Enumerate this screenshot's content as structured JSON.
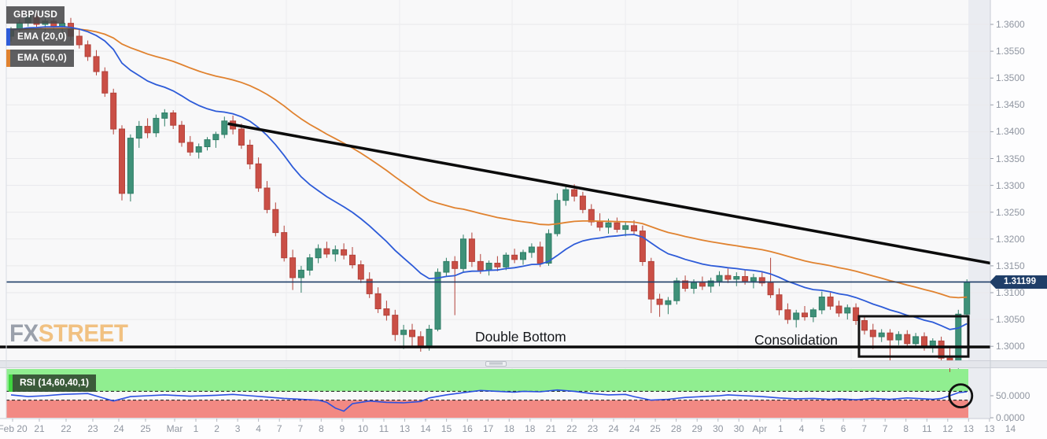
{
  "chart": {
    "pair_label": "GBP/USD",
    "legend": {
      "ema20_label": "EMA (20,0)",
      "ema50_label": "EMA (50,0)"
    },
    "watermark": {
      "part1": "FX",
      "part2": "STREET"
    },
    "annotations": {
      "double_bottom": "Double Bottom",
      "consolidation": "Consolidation"
    },
    "price_badge": "1.31199",
    "rsi_label": "RSI (14,60,40,1)"
  },
  "colors": {
    "bull": "#3f9179",
    "bull_border": "#2f7d66",
    "bear": "#ca4f46",
    "bear_border": "#b2423a",
    "ema20": "#2d5bd8",
    "ema50": "#e0822f",
    "rsi_line": "#2b50e0",
    "rsi_upper_band": "#90ee90",
    "rsi_lower_band": "#f28983",
    "price_line": "#1f3e68",
    "badge_bg": "#1f3e68",
    "annotation": "#16181c",
    "axis_text": "#9096a1",
    "watermark_fx": "#9aa0ab",
    "watermark_street": "#f1c181",
    "support_trend": "#0b0b0b",
    "legend_stripe_rsi": "#3fd53f"
  },
  "chart_data": {
    "type": "candlestick",
    "pair": "GBP/USD",
    "title": "GBP/USD with EMA(20) and EMA(50), RSI(14,60,40,1) sub-panel",
    "time_span": "Feb 20 - Apr 14",
    "price_axis": {
      "ticks": [
        "1.3600",
        "1.3550",
        "1.3500",
        "1.3450",
        "1.3400",
        "1.3350",
        "1.3300",
        "1.3250",
        "1.3200",
        "1.3150",
        "1.3100",
        "1.3050",
        "1.3000"
      ],
      "tick_values": [
        1.36,
        1.355,
        1.35,
        1.345,
        1.34,
        1.335,
        1.33,
        1.325,
        1.32,
        1.315,
        1.31,
        1.305,
        1.3
      ]
    },
    "time_axis": [
      "Feb 20",
      "21",
      "22",
      "23",
      "24",
      "25",
      "Mar",
      "1",
      "2",
      "3",
      "4",
      "7",
      "7",
      "8",
      "9",
      "10",
      "11",
      "13",
      "14",
      "15",
      "16",
      "17",
      "18",
      "18",
      "21",
      "22",
      "23",
      "24",
      "24",
      "25",
      "28",
      "29",
      "30",
      "30",
      "Apr",
      "1",
      "4",
      "5",
      "6",
      "7",
      "7",
      "8",
      "11",
      "12",
      "13",
      "13",
      "14"
    ],
    "candles": [
      [
        1.3578,
        1.3595,
        1.3568,
        1.359
      ],
      [
        1.359,
        1.361,
        1.3582,
        1.3603
      ],
      [
        1.3603,
        1.3622,
        1.3596,
        1.3615
      ],
      [
        1.3615,
        1.3625,
        1.3595,
        1.36
      ],
      [
        1.36,
        1.3612,
        1.3588,
        1.3606
      ],
      [
        1.3606,
        1.3618,
        1.359,
        1.3596
      ],
      [
        1.3596,
        1.3608,
        1.358,
        1.3602
      ],
      [
        1.3602,
        1.3612,
        1.357,
        1.3578
      ],
      [
        1.3578,
        1.359,
        1.3555,
        1.3562
      ],
      [
        1.3562,
        1.357,
        1.3532,
        1.354
      ],
      [
        1.354,
        1.3552,
        1.3505,
        1.3512
      ],
      [
        1.3512,
        1.352,
        1.3465,
        1.3472
      ],
      [
        1.3472,
        1.348,
        1.3395,
        1.3405
      ],
      [
        1.3405,
        1.3412,
        1.3272,
        1.3285
      ],
      [
        1.3285,
        1.3395,
        1.327,
        1.3388
      ],
      [
        1.3388,
        1.342,
        1.337,
        1.341
      ],
      [
        1.341,
        1.3425,
        1.3388,
        1.3398
      ],
      [
        1.3398,
        1.3432,
        1.339,
        1.3425
      ],
      [
        1.3425,
        1.3442,
        1.341,
        1.3435
      ],
      [
        1.3435,
        1.344,
        1.3405,
        1.3412
      ],
      [
        1.3412,
        1.342,
        1.3372,
        1.338
      ],
      [
        1.338,
        1.3392,
        1.3355,
        1.3362
      ],
      [
        1.3362,
        1.3378,
        1.335,
        1.3372
      ],
      [
        1.3372,
        1.339,
        1.3365,
        1.3385
      ],
      [
        1.3385,
        1.34,
        1.337,
        1.3395
      ],
      [
        1.3395,
        1.3428,
        1.3388,
        1.342
      ],
      [
        1.342,
        1.343,
        1.3395,
        1.3405
      ],
      [
        1.3405,
        1.3415,
        1.3368,
        1.3375
      ],
      [
        1.3375,
        1.3385,
        1.333,
        1.334
      ],
      [
        1.334,
        1.3352,
        1.3288,
        1.3295
      ],
      [
        1.3295,
        1.3308,
        1.3248,
        1.3255
      ],
      [
        1.3255,
        1.3268,
        1.3205,
        1.3212
      ],
      [
        1.3212,
        1.3225,
        1.3158,
        1.3165
      ],
      [
        1.3165,
        1.318,
        1.3105,
        1.3128
      ],
      [
        1.3128,
        1.315,
        1.31,
        1.3142
      ],
      [
        1.3142,
        1.3172,
        1.3132,
        1.3165
      ],
      [
        1.3165,
        1.319,
        1.3155,
        1.3182
      ],
      [
        1.3182,
        1.3195,
        1.3165,
        1.3172
      ],
      [
        1.3172,
        1.3188,
        1.3158,
        1.318
      ],
      [
        1.318,
        1.3192,
        1.3162,
        1.317
      ],
      [
        1.317,
        1.3185,
        1.3145,
        1.3152
      ],
      [
        1.3152,
        1.316,
        1.3118,
        1.3125
      ],
      [
        1.3125,
        1.3138,
        1.309,
        1.3098
      ],
      [
        1.3098,
        1.311,
        1.3062,
        1.307
      ],
      [
        1.307,
        1.3085,
        1.3048,
        1.3058
      ],
      [
        1.3058,
        1.3068,
        1.301,
        1.3022
      ],
      [
        1.3022,
        1.304,
        1.2995,
        1.303
      ],
      [
        1.303,
        1.3042,
        1.3,
        1.3018
      ],
      [
        1.3018,
        1.3028,
        1.299,
        1.2998
      ],
      [
        1.2998,
        1.304,
        1.2992,
        1.3032
      ],
      [
        1.3032,
        1.3145,
        1.3028,
        1.3138
      ],
      [
        1.3138,
        1.3165,
        1.313,
        1.3158
      ],
      [
        1.3158,
        1.3168,
        1.3058,
        1.3145
      ],
      [
        1.3145,
        1.3208,
        1.3138,
        1.32
      ],
      [
        1.32,
        1.3212,
        1.3148,
        1.3158
      ],
      [
        1.3158,
        1.3172,
        1.3135,
        1.3142
      ],
      [
        1.3142,
        1.316,
        1.3132,
        1.3155
      ],
      [
        1.3155,
        1.3168,
        1.314,
        1.3148
      ],
      [
        1.3148,
        1.3175,
        1.3142,
        1.317
      ],
      [
        1.317,
        1.3182,
        1.3155,
        1.3162
      ],
      [
        1.3162,
        1.318,
        1.3152,
        1.3175
      ],
      [
        1.3175,
        1.3192,
        1.3165,
        1.3185
      ],
      [
        1.3185,
        1.3195,
        1.3148,
        1.3155
      ],
      [
        1.3155,
        1.3218,
        1.315,
        1.321
      ],
      [
        1.321,
        1.3285,
        1.3205,
        1.3272
      ],
      [
        1.3272,
        1.33,
        1.3262,
        1.3292
      ],
      [
        1.3292,
        1.3302,
        1.327,
        1.328
      ],
      [
        1.328,
        1.3288,
        1.3248,
        1.3255
      ],
      [
        1.3255,
        1.3265,
        1.3225,
        1.3232
      ],
      [
        1.3232,
        1.3248,
        1.3215,
        1.3222
      ],
      [
        1.3222,
        1.3238,
        1.321,
        1.323
      ],
      [
        1.323,
        1.324,
        1.3212,
        1.3218
      ],
      [
        1.3218,
        1.3232,
        1.3205,
        1.3225
      ],
      [
        1.3225,
        1.3235,
        1.3208,
        1.3215
      ],
      [
        1.3215,
        1.3225,
        1.315,
        1.3158
      ],
      [
        1.3158,
        1.3165,
        1.3062,
        1.3088
      ],
      [
        1.3088,
        1.3098,
        1.3055,
        1.3078
      ],
      [
        1.3078,
        1.3092,
        1.306,
        1.3085
      ],
      [
        1.3085,
        1.3128,
        1.3078,
        1.3122
      ],
      [
        1.3122,
        1.3132,
        1.3102,
        1.3108
      ],
      [
        1.3108,
        1.3125,
        1.3098,
        1.3118
      ],
      [
        1.3118,
        1.313,
        1.3105,
        1.3112
      ],
      [
        1.3112,
        1.3128,
        1.31,
        1.3122
      ],
      [
        1.3122,
        1.314,
        1.3112,
        1.3132
      ],
      [
        1.3132,
        1.3145,
        1.3118,
        1.3125
      ],
      [
        1.3125,
        1.3138,
        1.3112,
        1.313
      ],
      [
        1.313,
        1.3142,
        1.3115,
        1.3122
      ],
      [
        1.3122,
        1.3135,
        1.3108,
        1.3128
      ],
      [
        1.3128,
        1.3138,
        1.3112,
        1.3118
      ],
      [
        1.3118,
        1.3165,
        1.309,
        1.3096
      ],
      [
        1.3096,
        1.3108,
        1.3058,
        1.3068
      ],
      [
        1.3068,
        1.308,
        1.3042,
        1.305
      ],
      [
        1.305,
        1.3068,
        1.3035,
        1.3062
      ],
      [
        1.3062,
        1.3075,
        1.3048,
        1.3055
      ],
      [
        1.3055,
        1.3072,
        1.3045,
        1.3068
      ],
      [
        1.3068,
        1.3102,
        1.306,
        1.3092
      ],
      [
        1.3092,
        1.31,
        1.3068,
        1.3075
      ],
      [
        1.3075,
        1.3085,
        1.3055,
        1.3062
      ],
      [
        1.3062,
        1.3078,
        1.305,
        1.3072
      ],
      [
        1.3072,
        1.308,
        1.304,
        1.3048
      ],
      [
        1.3048,
        1.3058,
        1.3022,
        1.303
      ],
      [
        1.303,
        1.3042,
        1.2995,
        1.3018
      ],
      [
        1.3018,
        1.3032,
        1.3008,
        1.3025
      ],
      [
        1.3025,
        1.3032,
        1.2962,
        1.3012
      ],
      [
        1.3012,
        1.3028,
        1.3002,
        1.3022
      ],
      [
        1.3022,
        1.303,
        1.2998,
        1.3005
      ],
      [
        1.3005,
        1.3025,
        1.2998,
        1.3018
      ],
      [
        1.3018,
        1.3026,
        1.2992,
        1.2998
      ],
      [
        1.2998,
        1.3015,
        1.2988,
        1.301
      ],
      [
        1.301,
        1.3018,
        1.2968,
        1.2978
      ],
      [
        1.2978,
        1.3,
        1.2952,
        1.2962
      ],
      [
        1.2962,
        1.3068,
        1.2958,
        1.306
      ],
      [
        1.306,
        1.3125,
        1.3055,
        1.31199
      ]
    ],
    "overlays": {
      "ema_periods": [
        20,
        50
      ],
      "current_price": 1.31199,
      "support_level": 1.3,
      "trendline": {
        "start_index": 25.4,
        "start_price": 1.3415,
        "end_price": 1.3155
      },
      "consolidation_box": {
        "start_index": 100,
        "end_index": 112,
        "price_top": 1.3056,
        "price_bottom": 1.2981
      }
    },
    "rsi": {
      "label": "RSI (14,60,40,1)",
      "upper_band": 60,
      "lower_band": 40,
      "ticks": [
        {
          "text": "50.0000",
          "value": 50
        },
        {
          "text": "0.0000",
          "value": 0
        }
      ],
      "points": [
        [
          0,
          52
        ],
        [
          2,
          48
        ],
        [
          4,
          50
        ],
        [
          6,
          53
        ],
        [
          9,
          55
        ],
        [
          12,
          38
        ],
        [
          14,
          48
        ],
        [
          16,
          50
        ],
        [
          18,
          52
        ],
        [
          21,
          49
        ],
        [
          24,
          51
        ],
        [
          26,
          53
        ],
        [
          28,
          50
        ],
        [
          30,
          47
        ],
        [
          32,
          44
        ],
        [
          34,
          42
        ],
        [
          36,
          40
        ],
        [
          37,
          35
        ],
        [
          38,
          22
        ],
        [
          39,
          15
        ],
        [
          40,
          32
        ],
        [
          42,
          38
        ],
        [
          44,
          35
        ],
        [
          46,
          34
        ],
        [
          48,
          37
        ],
        [
          49,
          45
        ],
        [
          51,
          52
        ],
        [
          53,
          57
        ],
        [
          55,
          62
        ],
        [
          57,
          60
        ],
        [
          59,
          58
        ],
        [
          60,
          60
        ],
        [
          62,
          59
        ],
        [
          64,
          63
        ],
        [
          66,
          60
        ],
        [
          68,
          55
        ],
        [
          70,
          52
        ],
        [
          72,
          53
        ],
        [
          73,
          48
        ],
        [
          75,
          40
        ],
        [
          77,
          42
        ],
        [
          79,
          46
        ],
        [
          81,
          48
        ],
        [
          83,
          50
        ],
        [
          84,
          52
        ],
        [
          86,
          50
        ],
        [
          88,
          48
        ],
        [
          90,
          45
        ],
        [
          92,
          43
        ],
        [
          94,
          44
        ],
        [
          96,
          42
        ],
        [
          97,
          43
        ],
        [
          99,
          41
        ],
        [
          101,
          44
        ],
        [
          103,
          42
        ],
        [
          105,
          45
        ],
        [
          107,
          43
        ],
        [
          108,
          42
        ],
        [
          109,
          44
        ],
        [
          110,
          50
        ],
        [
          111,
          57
        ],
        [
          112,
          59
        ]
      ],
      "last_value_circled": true
    }
  }
}
